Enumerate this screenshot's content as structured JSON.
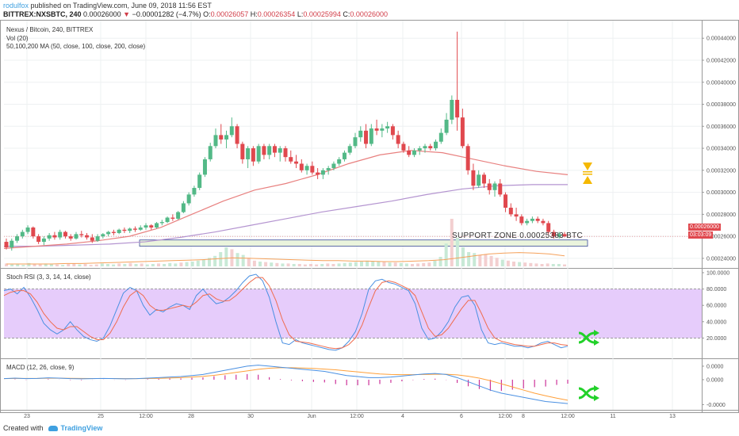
{
  "header": {
    "author": "rodulfox",
    "published_text": "published on TradingView.com, June 09, 2018 11:56 EST",
    "symbol": "BITTREX:NXSBTC, 240",
    "last": "0.00026000",
    "change_arrow": "▼",
    "change": "−0.00001282 (−4.7%)",
    "o_label": "O:",
    "o": "0.00026057",
    "h_label": "H:",
    "h": "0.00026354",
    "l_label": "L:",
    "l": "0.00025994",
    "c_label": "C:",
    "c": "0.00026000"
  },
  "legends": {
    "main_title": "Nexus / Bitcoin, 240, BITTREX",
    "vol": "Vol (20)",
    "ma": "50,100,200 MA (50, close, 100, close, 200, close)",
    "stoch": "Stoch RSI (3, 3, 14, 14, close)",
    "macd": "MACD (12, 26, close, 9)"
  },
  "annotations": {
    "support_zone": "SUPPORT ZONE 0.00025383 BTC",
    "price_tag": "0.00026000",
    "countdown": "03:03:09"
  },
  "footer": {
    "created_with": "Created with",
    "brand": "TradingView"
  },
  "colors": {
    "up": "#53b987",
    "down": "#e0484e",
    "ma_red": "#e8807f",
    "ma_purple": "#b494d0",
    "stoch_band": "#e6ccfb",
    "stoch_k": "#4a90e2",
    "stoch_d": "#f06c4e",
    "macd_line": "#4a90e2",
    "signal_line": "#ffa03a",
    "hist": "#cc3399",
    "support_fill": "#eaf4dc",
    "support_border": "#3a4a9a",
    "arrow_orange": "#f5b800",
    "cross_green": "#22d12a"
  },
  "chart_data": [
    {
      "type": "candlestick",
      "title": "Nexus / Bitcoin, 240, BITTREX",
      "yaxis_ticks": [
        "0.00044000",
        "0.00042000",
        "0.00040000",
        "0.00038000",
        "0.00036000",
        "0.00034000",
        "0.00032000",
        "0.00030000",
        "0.00028000",
        "0.00026000",
        "0.00024000"
      ],
      "ylim": [
        0.000232,
        0.000456
      ],
      "xaxis_ticks": [
        "23",
        "25",
        "12:00",
        "28",
        "30",
        "Jun",
        "12:00",
        "4",
        "6",
        "12:00",
        "8",
        "12:00",
        "11",
        "13"
      ],
      "candles_ohlc": [
        [
          0.000255,
          0.000258,
          0.000248,
          0.00025
        ],
        [
          0.00025,
          0.000258,
          0.000247,
          0.000256
        ],
        [
          0.000256,
          0.000262,
          0.000254,
          0.00026
        ],
        [
          0.00026,
          0.000266,
          0.000258,
          0.000264
        ],
        [
          0.000264,
          0.00027,
          0.000262,
          0.000268
        ],
        [
          0.000268,
          0.000269,
          0.000258,
          0.00026
        ],
        [
          0.00026,
          0.000262,
          0.000253,
          0.000255
        ],
        [
          0.000255,
          0.00026,
          0.000252,
          0.000258
        ],
        [
          0.000258,
          0.000263,
          0.000256,
          0.000261
        ],
        [
          0.000261,
          0.000264,
          0.000257,
          0.000259
        ],
        [
          0.000259,
          0.000266,
          0.000257,
          0.000264
        ],
        [
          0.000264,
          0.000265,
          0.000258,
          0.00026
        ],
        [
          0.00026,
          0.000262,
          0.000256,
          0.000258
        ],
        [
          0.000258,
          0.000264,
          0.000257,
          0.000262
        ],
        [
          0.000262,
          0.000265,
          0.000259,
          0.000261
        ],
        [
          0.000261,
          0.000263,
          0.000257,
          0.000259
        ],
        [
          0.000259,
          0.000262,
          0.000254,
          0.000256
        ],
        [
          0.000256,
          0.000262,
          0.000255,
          0.00026
        ],
        [
          0.00026,
          0.000263,
          0.000258,
          0.000262
        ],
        [
          0.000262,
          0.000265,
          0.00026,
          0.000264
        ],
        [
          0.000264,
          0.000266,
          0.000261,
          0.000263
        ],
        [
          0.000263,
          0.000267,
          0.000262,
          0.000266
        ],
        [
          0.000266,
          0.000268,
          0.000263,
          0.000265
        ],
        [
          0.000265,
          0.000268,
          0.000263,
          0.000267
        ],
        [
          0.000267,
          0.000269,
          0.000264,
          0.000266
        ],
        [
          0.000266,
          0.00027,
          0.000265,
          0.000268
        ],
        [
          0.000268,
          0.000272,
          0.000266,
          0.00027
        ],
        [
          0.00027,
          0.000271,
          0.000266,
          0.000268
        ],
        [
          0.000268,
          0.000273,
          0.000267,
          0.000272
        ],
        [
          0.000272,
          0.000275,
          0.00027,
          0.000273
        ],
        [
          0.000273,
          0.000278,
          0.000272,
          0.000277
        ],
        [
          0.000277,
          0.00028,
          0.000274,
          0.000276
        ],
        [
          0.000276,
          0.000283,
          0.000275,
          0.000282
        ],
        [
          0.000282,
          0.000292,
          0.000281,
          0.00029
        ],
        [
          0.00029,
          0.0003,
          0.000288,
          0.000298
        ],
        [
          0.000298,
          0.000306,
          0.000296,
          0.000304
        ],
        [
          0.000304,
          0.000318,
          0.000302,
          0.000316
        ],
        [
          0.000316,
          0.000332,
          0.000314,
          0.00033
        ],
        [
          0.00033,
          0.000345,
          0.000328,
          0.000342
        ],
        [
          0.000342,
          0.000358,
          0.00034,
          0.000352
        ],
        [
          0.000352,
          0.000362,
          0.000344,
          0.000348
        ],
        [
          0.000348,
          0.000356,
          0.00034,
          0.000352
        ],
        [
          0.000352,
          0.000368,
          0.00035,
          0.00036
        ],
        [
          0.00036,
          0.000362,
          0.00034,
          0.000344
        ],
        [
          0.000344,
          0.000346,
          0.000326,
          0.00033
        ],
        [
          0.00033,
          0.000342,
          0.000322,
          0.00034
        ],
        [
          0.00034,
          0.000342,
          0.000324,
          0.000328
        ],
        [
          0.000328,
          0.000344,
          0.000326,
          0.000342
        ],
        [
          0.000342,
          0.000344,
          0.00033,
          0.000334
        ],
        [
          0.000334,
          0.000344,
          0.00033,
          0.000342
        ],
        [
          0.000342,
          0.000344,
          0.000332,
          0.000336
        ],
        [
          0.000336,
          0.000342,
          0.000328,
          0.00034
        ],
        [
          0.00034,
          0.000342,
          0.000328,
          0.000332
        ],
        [
          0.000332,
          0.000338,
          0.000326,
          0.000328
        ],
        [
          0.000328,
          0.000334,
          0.000322,
          0.000326
        ],
        [
          0.000326,
          0.00033,
          0.000318,
          0.00032
        ],
        [
          0.00032,
          0.000326,
          0.000316,
          0.000324
        ],
        [
          0.000324,
          0.000328,
          0.000316,
          0.000318
        ],
        [
          0.000318,
          0.000322,
          0.000312,
          0.000316
        ],
        [
          0.000316,
          0.000322,
          0.000312,
          0.00032
        ],
        [
          0.00032,
          0.000324,
          0.000316,
          0.000322
        ],
        [
          0.000322,
          0.000328,
          0.00032,
          0.000326
        ],
        [
          0.000326,
          0.000332,
          0.000324,
          0.00033
        ],
        [
          0.00033,
          0.000338,
          0.000328,
          0.000336
        ],
        [
          0.000336,
          0.000344,
          0.000334,
          0.000342
        ],
        [
          0.000342,
          0.000354,
          0.00034,
          0.00035
        ],
        [
          0.00035,
          0.00036,
          0.000346,
          0.000356
        ],
        [
          0.000356,
          0.000362,
          0.00034,
          0.000344
        ],
        [
          0.000344,
          0.000362,
          0.000342,
          0.000358
        ],
        [
          0.000358,
          0.000366,
          0.000352,
          0.000356
        ],
        [
          0.000356,
          0.000362,
          0.00035,
          0.000358
        ],
        [
          0.000358,
          0.000364,
          0.000354,
          0.00036
        ],
        [
          0.00036,
          0.000362,
          0.000348,
          0.000352
        ],
        [
          0.000352,
          0.000356,
          0.00034,
          0.000344
        ],
        [
          0.000344,
          0.000346,
          0.000336,
          0.000338
        ],
        [
          0.000338,
          0.000342,
          0.000332,
          0.000334
        ],
        [
          0.000334,
          0.00034,
          0.000332,
          0.000338
        ],
        [
          0.000338,
          0.000342,
          0.000334,
          0.00034
        ],
        [
          0.00034,
          0.000344,
          0.000336,
          0.000342
        ],
        [
          0.000342,
          0.000344,
          0.000338,
          0.00034
        ],
        [
          0.00034,
          0.000348,
          0.000338,
          0.000346
        ],
        [
          0.000346,
          0.000358,
          0.000344,
          0.000354
        ],
        [
          0.000354,
          0.000372,
          0.000352,
          0.000366
        ],
        [
          0.000366,
          0.000388,
          0.000362,
          0.000384
        ],
        [
          0.000384,
          0.000446,
          0.000356,
          0.000368
        ],
        [
          0.000368,
          0.000376,
          0.00034,
          0.000342
        ],
        [
          0.000342,
          0.000344,
          0.000316,
          0.00032
        ],
        [
          0.00032,
          0.000326,
          0.000302,
          0.000306
        ],
        [
          0.000306,
          0.00032,
          0.000304,
          0.000316
        ],
        [
          0.000316,
          0.000318,
          0.000304,
          0.000308
        ],
        [
          0.000308,
          0.000312,
          0.000298,
          0.000302
        ],
        [
          0.000302,
          0.00031,
          0.000296,
          0.000308
        ],
        [
          0.000308,
          0.000312,
          0.000296,
          0.000298
        ],
        [
          0.000298,
          0.0003,
          0.000282,
          0.000286
        ],
        [
          0.000286,
          0.00029,
          0.000278,
          0.00028
        ],
        [
          0.00028,
          0.000286,
          0.000274,
          0.000278
        ],
        [
          0.000278,
          0.00028,
          0.00027,
          0.000272
        ],
        [
          0.000272,
          0.000276,
          0.00027,
          0.000274
        ],
        [
          0.000274,
          0.000278,
          0.000272,
          0.000276
        ],
        [
          0.000276,
          0.000278,
          0.000272,
          0.000274
        ],
        [
          0.000274,
          0.000276,
          0.00027,
          0.000272
        ],
        [
          0.000272,
          0.000274,
          0.000262,
          0.000264
        ],
        [
          0.000264,
          0.000266,
          0.000258,
          0.00026
        ],
        [
          0.00026,
          0.000264,
          0.000258,
          0.000262
        ],
        [
          0.000262,
          0.000264,
          0.000259,
          0.00026
        ]
      ],
      "ma50": [
        0.000249,
        0.000251,
        0.000253,
        0.000256,
        0.00026,
        0.000268,
        0.00028,
        0.000292,
        0.000302,
        0.000308,
        0.000316,
        0.000326,
        0.000334,
        0.000338,
        0.000336,
        0.00033,
        0.000324,
        0.000319,
        0.000316
      ],
      "ma100": [
        0.000251,
        0.000251,
        0.000252,
        0.000253,
        0.000255,
        0.000259,
        0.000264,
        0.00027,
        0.000276,
        0.000282,
        0.000287,
        0.000292,
        0.000298,
        0.000303,
        0.000306,
        0.000307,
        0.000307
      ],
      "volume": [
        6,
        4,
        5,
        3,
        7,
        5,
        4,
        6,
        5,
        4,
        3,
        5,
        6,
        4,
        5,
        3,
        4,
        6,
        5,
        4,
        6,
        5,
        7,
        5,
        6,
        4,
        5,
        6,
        5,
        7,
        6,
        8,
        9,
        10,
        12,
        14,
        18,
        22,
        30,
        40,
        36,
        28,
        24,
        18,
        12,
        10,
        9,
        8,
        7,
        6,
        6,
        5,
        5,
        4,
        5,
        4,
        5,
        6,
        5,
        6,
        7,
        8,
        9,
        10,
        12,
        11,
        10,
        9,
        8,
        8,
        7,
        6,
        5,
        6,
        7,
        8,
        12,
        20,
        48,
        100,
        60,
        40,
        30,
        28,
        24,
        26,
        22,
        18,
        14,
        12,
        10,
        9,
        8,
        7,
        6,
        5,
        6,
        5,
        5,
        4
      ],
      "vol_ma": [
        5,
        5,
        5,
        5,
        6,
        6,
        7,
        8,
        9,
        10,
        11,
        12,
        13,
        14,
        16,
        18,
        17,
        16,
        15,
        14,
        13,
        12,
        12,
        11,
        11,
        10,
        10,
        11,
        12,
        14,
        18,
        22,
        26,
        28,
        29,
        28,
        26,
        22
      ]
    },
    {
      "type": "line",
      "title": "Stoch RSI (3, 3, 14, 14, close)",
      "yaxis_ticks": [
        "100.0000",
        "80.0000",
        "60.0000",
        "40.0000",
        "20.0000"
      ],
      "ylim": [
        0,
        100
      ],
      "band": [
        20,
        80
      ],
      "k": [
        78,
        80,
        74,
        82,
        70,
        55,
        38,
        30,
        25,
        30,
        40,
        30,
        22,
        18,
        16,
        20,
        35,
        55,
        75,
        82,
        78,
        60,
        48,
        55,
        52,
        58,
        62,
        60,
        55,
        72,
        80,
        70,
        62,
        64,
        70,
        78,
        88,
        96,
        98,
        90,
        70,
        40,
        14,
        12,
        18,
        14,
        12,
        10,
        8,
        6,
        5,
        8,
        16,
        28,
        50,
        80,
        90,
        92,
        88,
        86,
        82,
        78,
        62,
        32,
        18,
        20,
        28,
        40,
        58,
        70,
        72,
        60,
        30,
        14,
        12,
        14,
        12,
        10,
        10,
        8,
        10,
        14,
        16,
        12,
        8,
        10
      ],
      "d": [
        72,
        76,
        78,
        78,
        74,
        64,
        50,
        40,
        32,
        30,
        34,
        34,
        28,
        22,
        18,
        18,
        26,
        40,
        58,
        72,
        78,
        72,
        60,
        54,
        54,
        56,
        58,
        60,
        58,
        64,
        72,
        74,
        68,
        65,
        66,
        72,
        80,
        88,
        94,
        94,
        84,
        66,
        42,
        24,
        16,
        15,
        14,
        12,
        10,
        8,
        7,
        8,
        12,
        20,
        36,
        58,
        78,
        88,
        90,
        88,
        84,
        80,
        72,
        52,
        32,
        22,
        24,
        32,
        44,
        56,
        66,
        66,
        50,
        32,
        20,
        16,
        14,
        12,
        11,
        10,
        10,
        12,
        14,
        14,
        12,
        11
      ]
    },
    {
      "type": "line",
      "title": "MACD (12, 26, close, 9)",
      "yaxis_ticks": [
        "0.0000",
        "0.0000",
        "-0.0000"
      ],
      "macd": [
        0.1,
        0.15,
        0.1,
        0.12,
        0.18,
        0.15,
        0.1,
        0.08,
        0.1,
        0.12,
        0.1,
        0.08,
        0.1,
        0.15,
        0.2,
        0.25,
        0.3,
        0.4,
        0.5,
        0.7,
        0.9,
        1.1,
        1.3,
        1.4,
        1.3,
        1.2,
        1.1,
        1.0,
        0.9,
        0.8,
        0.6,
        0.4,
        0.3,
        0.2,
        0.2,
        0.25,
        0.35,
        0.45,
        0.55,
        0.6,
        0.5,
        0.2,
        -0.2,
        -0.6,
        -1.0,
        -1.3,
        -1.5,
        -1.7,
        -1.9,
        -2.1,
        -2.2,
        -2.3
      ],
      "signal": [
        0.1,
        0.12,
        0.12,
        0.12,
        0.14,
        0.14,
        0.13,
        0.12,
        0.11,
        0.11,
        0.11,
        0.1,
        0.1,
        0.11,
        0.13,
        0.16,
        0.2,
        0.25,
        0.32,
        0.42,
        0.55,
        0.7,
        0.85,
        1.0,
        1.1,
        1.15,
        1.15,
        1.12,
        1.08,
        1.02,
        0.95,
        0.85,
        0.75,
        0.65,
        0.55,
        0.5,
        0.48,
        0.48,
        0.5,
        0.52,
        0.52,
        0.46,
        0.33,
        0.15,
        -0.1,
        -0.4,
        -0.7,
        -1.0,
        -1.3,
        -1.55,
        -1.78,
        -1.98
      ],
      "histogram": [
        0,
        0.03,
        -0.02,
        0,
        0.04,
        0.01,
        -0.03,
        -0.04,
        -0.01,
        0.01,
        -0.01,
        -0.02,
        0,
        0.04,
        0.07,
        0.09,
        0.1,
        0.15,
        0.18,
        0.28,
        0.35,
        0.4,
        0.45,
        0.4,
        0.2,
        0.05,
        -0.05,
        -0.12,
        -0.18,
        -0.22,
        -0.35,
        -0.45,
        -0.45,
        -0.45,
        -0.35,
        -0.25,
        -0.13,
        -0.03,
        0.05,
        0.08,
        -0.02,
        -0.26,
        -0.53,
        -0.75,
        -0.9,
        -0.9,
        -0.8,
        -0.7,
        -0.6,
        -0.55,
        -0.42,
        -0.32
      ]
    }
  ]
}
